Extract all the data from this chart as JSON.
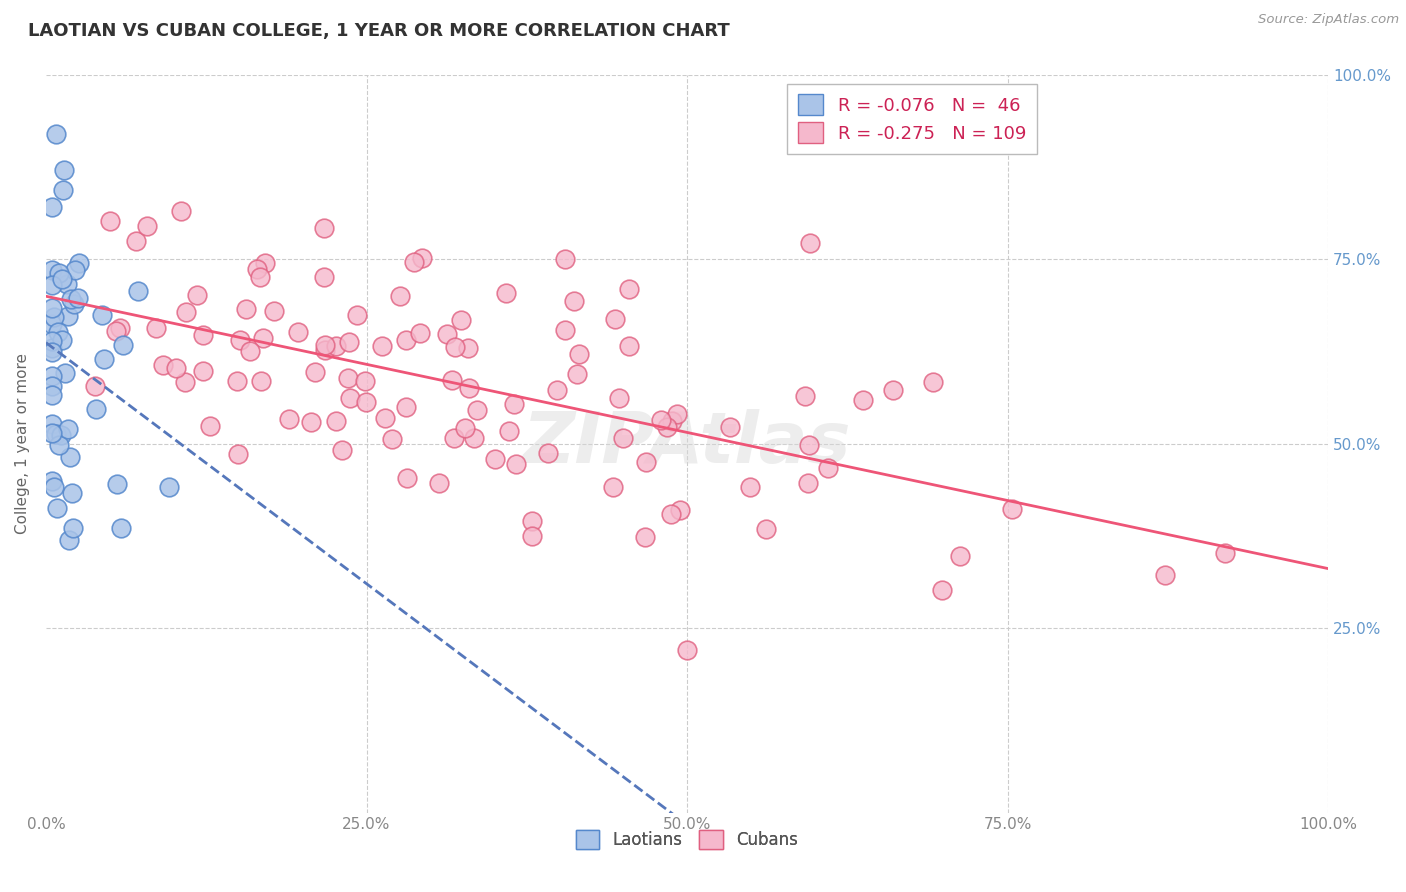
{
  "title": "LAOTIAN VS CUBAN COLLEGE, 1 YEAR OR MORE CORRELATION CHART",
  "source_text": "Source: ZipAtlas.com",
  "ylabel": "College, 1 year or more",
  "xlim": [
    0,
    1
  ],
  "ylim": [
    0,
    1
  ],
  "xticks": [
    0.0,
    0.25,
    0.5,
    0.75,
    1.0
  ],
  "yticks": [
    0.0,
    0.25,
    0.5,
    0.75,
    1.0
  ],
  "xtick_labels": [
    "0.0%",
    "25.0%",
    "50.0%",
    "75.0%",
    "100.0%"
  ],
  "right_ytick_labels": [
    "25.0%",
    "50.0%",
    "75.0%",
    "100.0%"
  ],
  "laotian_color": "#aac4e8",
  "cuban_color": "#f5b8cc",
  "laotian_edge": "#5588cc",
  "cuban_edge": "#e06080",
  "laotian_line_color": "#5577bb",
  "cuban_line_color": "#ee5577",
  "R_laotian": -0.076,
  "N_laotian": 46,
  "R_cuban": -0.275,
  "N_cuban": 109,
  "watermark": "ZIPAtlas",
  "background_color": "#ffffff",
  "grid_color": "#cccccc",
  "title_color": "#333333",
  "source_color": "#999999",
  "tick_color": "#6699cc",
  "ylabel_color": "#666666"
}
